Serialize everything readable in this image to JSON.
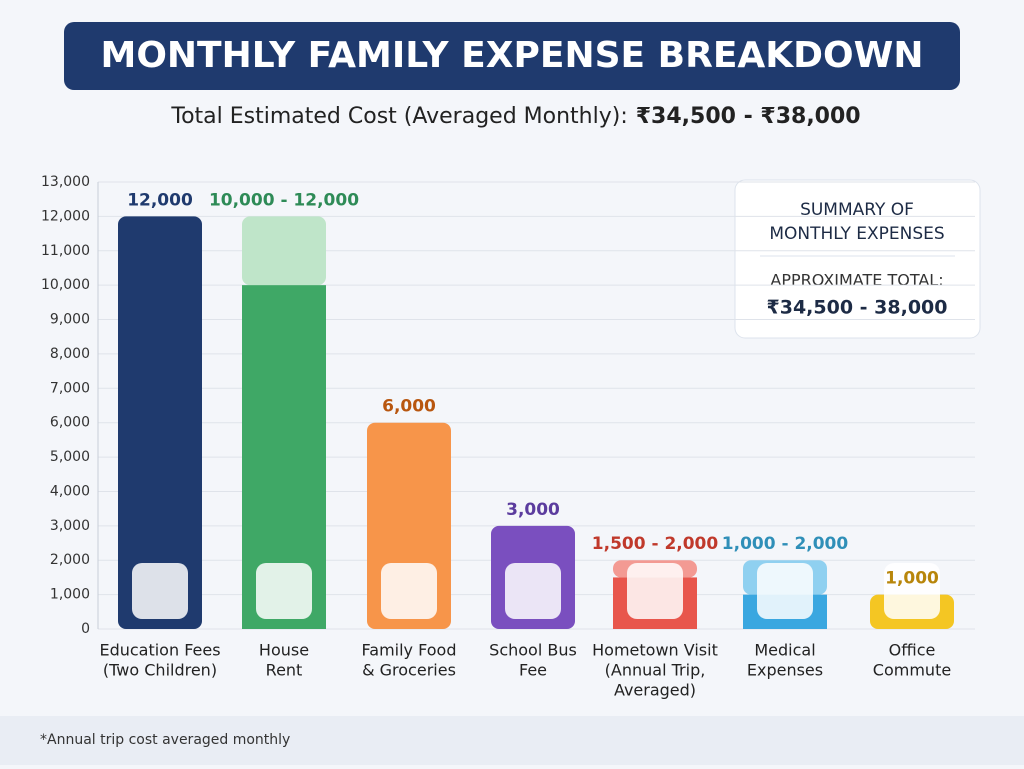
{
  "chart_data": {
    "type": "bar",
    "title": "MONTHLY FAMILY EXPENSE BREAKDOWN",
    "subtitle": "Total Estimated Cost (Averaged Monthly):",
    "subtitle_total": "₹34,500 - ₹38,000",
    "categories": [
      [
        "Education Fees",
        "(Two Children)"
      ],
      [
        "House",
        "Rent"
      ],
      [
        "Family Food",
        "& Groceries"
      ],
      [
        "School Bus",
        "Fee"
      ],
      [
        "Hometown Visit",
        "(Annual Trip,",
        "Averaged)"
      ],
      [
        "Medical",
        "Expenses"
      ],
      [
        "Office",
        "Commute"
      ]
    ],
    "values": [
      12000,
      10000,
      6000,
      3000,
      1500,
      1000,
      1000
    ],
    "values_high": [
      null,
      12000,
      null,
      null,
      2000,
      2000,
      null
    ],
    "value_labels": [
      "12,000",
      "10,000 - 12,000",
      "6,000",
      "3,000",
      "1,500 - 2,000",
      "1,000 - 2,000",
      "1,000"
    ],
    "colors": [
      "#1f3a6e",
      "#3fa866",
      "#f7954a",
      "#7a4fbf",
      "#e8564c",
      "#3aa7e0",
      "#f4c623"
    ],
    "high_colors": [
      null,
      "#bfe5c9",
      null,
      null,
      "#f39a93",
      "#8fd0f0",
      null
    ],
    "label_colors": [
      "#1f3a6e",
      "#2e8b57",
      "#b8560f",
      "#5b3c9e",
      "#c0392b",
      "#2f8fb8",
      "#b8860b"
    ],
    "ylim": [
      0,
      13000
    ],
    "yticks": [
      0,
      {
        "value": 1000,
        "label": "1,000"
      },
      {
        "value": 2000,
        "label": "2,000"
      },
      {
        "value": 3000,
        "label": "3,000"
      },
      {
        "value": 4000,
        "label": "4,000"
      },
      {
        "value": 5000,
        "label": "5,000"
      },
      {
        "value": 6000,
        "label": "6,000"
      },
      {
        "value": 7000,
        "label": "7,000"
      },
      {
        "value": 8000,
        "label": "8,000"
      },
      {
        "value": 9000,
        "label": "9,000"
      },
      {
        "value": 10000,
        "label": "10,000"
      },
      {
        "value": 11000,
        "label": "11,000"
      },
      {
        "value": 12000,
        "label": "12,000"
      },
      {
        "value": 13000,
        "label": "13,000"
      }
    ],
    "grid": true,
    "summary": {
      "title": [
        "SUMMARY OF",
        "MONTHLY EXPENSES"
      ],
      "label": "APPROXIMATE TOTAL:",
      "total": "₹34,500 - 38,000"
    },
    "footnote": "*Annual trip cost averaged monthly"
  }
}
